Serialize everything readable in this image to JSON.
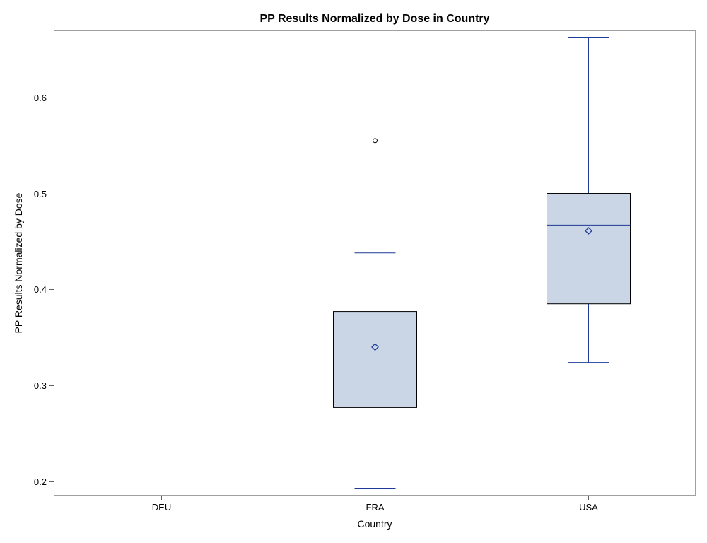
{
  "chart_data": {
    "type": "box",
    "title": "PP Results Normalized by Dose in Country",
    "xlabel": "Country",
    "ylabel": "PP Results Normalized by Dose",
    "categories": [
      "DEU",
      "FRA",
      "USA"
    ],
    "ylim": [
      0.186,
      0.669
    ],
    "yticks": [
      0.2,
      0.3,
      0.4,
      0.5,
      0.6
    ],
    "grid": false,
    "boxes": [
      {
        "category": "FRA",
        "whisker_low": 0.193,
        "q1": 0.277,
        "median": 0.341,
        "mean": 0.34,
        "q3": 0.377,
        "whisker_high": 0.438,
        "outliers": [
          0.555
        ]
      },
      {
        "category": "USA",
        "whisker_low": 0.324,
        "q1": 0.385,
        "median": 0.467,
        "mean": 0.461,
        "q3": 0.5,
        "whisker_high": 0.662,
        "outliers": []
      }
    ],
    "colors": {
      "box_fill": "#cad5e5",
      "box_border": "#000000",
      "whisker": "#1f3b99",
      "median": "#1f3b99",
      "mean_marker": "#1f3b99",
      "outlier": "#000000",
      "frame": "#a0a0a0"
    },
    "mean_marker": "diamond-icon",
    "outlier_marker": "circle-icon"
  }
}
